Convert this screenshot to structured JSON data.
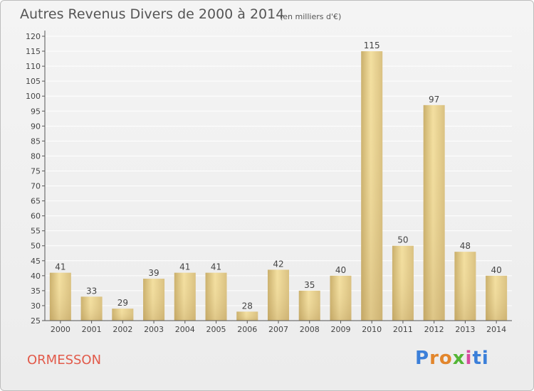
{
  "header": {
    "title": "Autres Revenus Divers de 2000 à 2014",
    "subtitle": "(en milliers d'€)"
  },
  "footer": {
    "commune": "ORMESSON",
    "logo_text": "Proxiti",
    "logo_letters": [
      "P",
      "r",
      "o",
      "x",
      "i",
      "ti"
    ]
  },
  "colors": {
    "bar_light": "#f3dfa0",
    "bar_dark": "#c9ae6a",
    "axis": "#555555",
    "grid": "#ffffff",
    "commune": "#e25a4a"
  },
  "chart_data": {
    "type": "bar",
    "categories": [
      "2000",
      "2001",
      "2002",
      "2003",
      "2004",
      "2005",
      "2006",
      "2007",
      "2008",
      "2009",
      "2010",
      "2011",
      "2012",
      "2013",
      "2014"
    ],
    "values": [
      41,
      33,
      29,
      39,
      41,
      41,
      28,
      42,
      35,
      40,
      115,
      50,
      97,
      48,
      40
    ],
    "data_labels": [
      "41",
      "33",
      "29",
      "39",
      "41",
      "41",
      "28",
      "42",
      "35",
      "40",
      "115",
      "50",
      "97",
      "48",
      "40"
    ],
    "title": "Autres Revenus Divers de 2000 à 2014",
    "subtitle": "(en milliers d'€)",
    "xlabel": "",
    "ylabel": "",
    "ylim": [
      25,
      120
    ],
    "yticks": [
      "25",
      "30",
      "35",
      "40",
      "45",
      "50",
      "55",
      "60",
      "65",
      "70",
      "75",
      "80",
      "85",
      "90",
      "95",
      "100",
      "105",
      "110",
      "115",
      "120"
    ],
    "grid": true
  }
}
